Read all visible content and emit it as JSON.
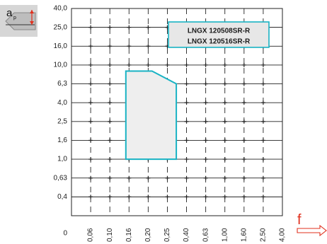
{
  "chart_data": {
    "type": "area",
    "x_categories": [
      "0",
      "0,06",
      "0,10",
      "0,16",
      "0,20",
      "0,25",
      "0,40",
      "0,63",
      "1,00",
      "1,60",
      "2,50",
      "4,00"
    ],
    "y_categories": [
      "0",
      "0,4",
      "0,63",
      "1,0",
      "1,6",
      "2,5",
      "4,0",
      "6,3",
      "10,0",
      "16,0",
      "25,0",
      "40,0"
    ],
    "xlim": [
      0,
      4.0
    ],
    "ylim": [
      0,
      40.0
    ],
    "xlabel": "f",
    "ylabel_main": "a",
    "ylabel_sub": "p",
    "grid": true,
    "legend": {
      "placement": "top-right",
      "entries": [
        "LNGX 120508SR-R",
        "LNGX 120516SR-R"
      ]
    },
    "series": [
      {
        "type": "polygon",
        "points": [
          {
            "x": 0.15,
            "y": 1.0
          },
          {
            "x": 0.15,
            "y": 8.8
          },
          {
            "x": 0.21,
            "y": 8.8
          },
          {
            "x": 0.32,
            "y": 6.3
          },
          {
            "x": 0.32,
            "y": 1.0
          }
        ],
        "stroke": "#19b3c4",
        "fill": "#eeeeee"
      }
    ]
  }
}
